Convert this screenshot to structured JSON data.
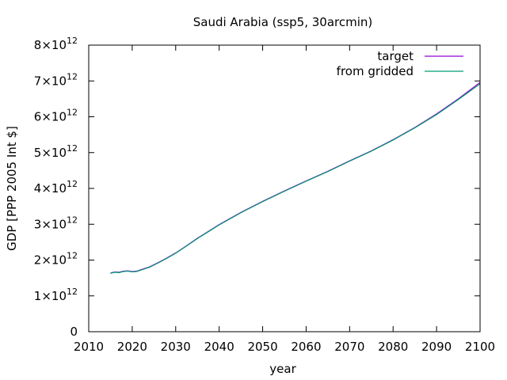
{
  "chart_data": {
    "type": "line",
    "title": "Saudi Arabia (ssp5, 30arcmin)",
    "xlabel": "year",
    "ylabel": "GDP [PPP 2005 Int $]",
    "xlim": [
      2010,
      2100
    ],
    "ylim": [
      0,
      8000000000000
    ],
    "x_ticks": [
      2010,
      2020,
      2030,
      2040,
      2050,
      2060,
      2070,
      2080,
      2090,
      2100
    ],
    "x_tick_labels": [
      "2010",
      "2020",
      "2030",
      "2040",
      "2050",
      "2060",
      "2070",
      "2080",
      "2090",
      "2100"
    ],
    "y_ticks": [
      0,
      1000000000000,
      2000000000000,
      3000000000000,
      4000000000000,
      5000000000000,
      6000000000000,
      7000000000000,
      8000000000000
    ],
    "y_tick_labels": [
      {
        "mantissa": "0",
        "exponent": ""
      },
      {
        "mantissa": "1×10",
        "exponent": "12"
      },
      {
        "mantissa": "2×10",
        "exponent": "12"
      },
      {
        "mantissa": "3×10",
        "exponent": "12"
      },
      {
        "mantissa": "4×10",
        "exponent": "12"
      },
      {
        "mantissa": "5×10",
        "exponent": "12"
      },
      {
        "mantissa": "6×10",
        "exponent": "12"
      },
      {
        "mantissa": "7×10",
        "exponent": "12"
      },
      {
        "mantissa": "8×10",
        "exponent": "12"
      }
    ],
    "grid": false,
    "legend_position": "top-right",
    "series": [
      {
        "name": "target",
        "color": "#9400d3",
        "x": [
          2015,
          2016,
          2017,
          2018,
          2019,
          2020,
          2021,
          2022,
          2024,
          2026,
          2028,
          2030,
          2032,
          2035,
          2040,
          2045,
          2050,
          2055,
          2060,
          2065,
          2070,
          2075,
          2080,
          2085,
          2090,
          2095,
          2100
        ],
        "y": [
          1640000000000,
          1670000000000,
          1660000000000,
          1690000000000,
          1700000000000,
          1680000000000,
          1690000000000,
          1730000000000,
          1810000000000,
          1930000000000,
          2060000000000,
          2200000000000,
          2360000000000,
          2610000000000,
          2990000000000,
          3330000000000,
          3640000000000,
          3930000000000,
          4210000000000,
          4480000000000,
          4770000000000,
          5050000000000,
          5360000000000,
          5700000000000,
          6080000000000,
          6500000000000,
          6960000000000
        ]
      },
      {
        "name": "from gridded",
        "color": "#009e73",
        "x": [
          2015,
          2016,
          2017,
          2018,
          2019,
          2020,
          2021,
          2022,
          2024,
          2026,
          2028,
          2030,
          2032,
          2035,
          2040,
          2045,
          2050,
          2055,
          2060,
          2065,
          2070,
          2075,
          2080,
          2085,
          2090,
          2095,
          2100
        ],
        "y": [
          1630000000000,
          1660000000000,
          1650000000000,
          1680000000000,
          1690000000000,
          1670000000000,
          1680000000000,
          1720000000000,
          1800000000000,
          1920000000000,
          2050000000000,
          2190000000000,
          2350000000000,
          2600000000000,
          2980000000000,
          3320000000000,
          3630000000000,
          3920000000000,
          4200000000000,
          4470000000000,
          4760000000000,
          5040000000000,
          5350000000000,
          5690000000000,
          6060000000000,
          6480000000000,
          6920000000000
        ]
      }
    ]
  }
}
